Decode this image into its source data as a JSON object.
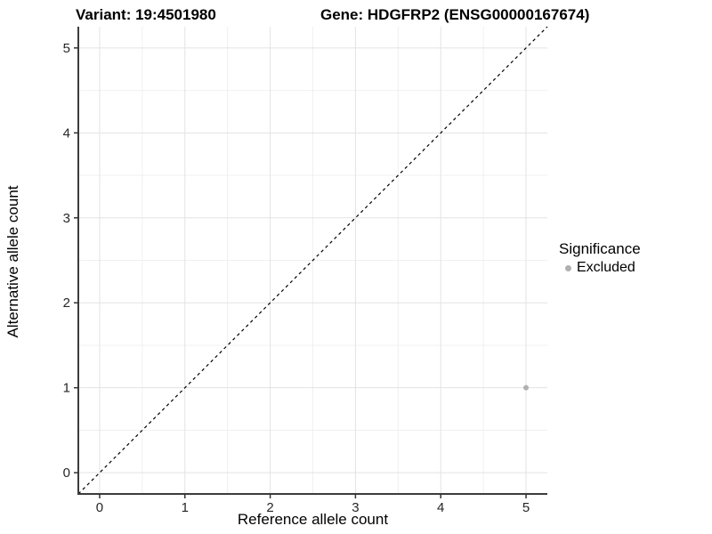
{
  "chart_data": {
    "type": "scatter",
    "title_variant": "Variant: 19:4501980",
    "title_gene": "Gene: HDGFRP2 (ENSG00000167674)",
    "xlabel": "Reference allele count",
    "ylabel": "Alternative allele count",
    "xlim": [
      -0.25,
      5.25
    ],
    "ylim": [
      -0.25,
      5.25
    ],
    "xticks": [
      0,
      1,
      2,
      3,
      4,
      5
    ],
    "yticks": [
      0,
      1,
      2,
      3,
      4,
      5
    ],
    "minor_gridlines_x": [
      0.5,
      1.5,
      2.5,
      3.5,
      4.5
    ],
    "minor_gridlines_y": [
      0.5,
      1.5,
      2.5,
      3.5,
      4.5
    ],
    "grid": "on",
    "identity_line": {
      "equation": "y = x",
      "style": "dashed",
      "color": "#000000"
    },
    "points": [
      {
        "x": 5,
        "y": 1,
        "significance": "Excluded",
        "color": "#b0b0b0"
      }
    ],
    "legend": {
      "title": "Significance",
      "position": "right",
      "entries": [
        {
          "label": "Excluded",
          "color": "#b0b0b0"
        }
      ]
    },
    "colors": {
      "background": "#ffffff",
      "major_grid": "#e3e3e3",
      "minor_grid": "#f0f0f0",
      "axis_line": "#3c3c3c",
      "tick": "#333333",
      "text": "#000000",
      "tick_label": "#262626"
    }
  }
}
